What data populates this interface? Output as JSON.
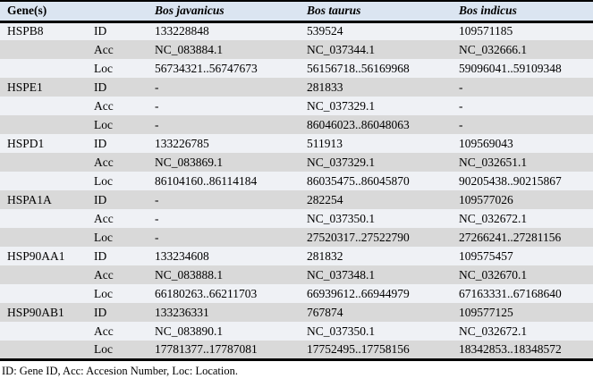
{
  "table": {
    "header": {
      "gene_col": "Gene(s)",
      "sub_col": "",
      "species": [
        "Bos javanicus",
        "Bos taurus",
        "Bos indicus"
      ]
    },
    "genes": [
      {
        "name": "HSPB8",
        "rows": [
          {
            "label": "ID",
            "values": [
              "133228848",
              "539524",
              "109571185"
            ]
          },
          {
            "label": "Acc",
            "values": [
              "NC_083884.1",
              "NC_037344.1",
              "NC_032666.1"
            ]
          },
          {
            "label": "Loc",
            "values": [
              "56734321..56747673",
              "56156718..56169968",
              "59096041..59109348"
            ]
          }
        ]
      },
      {
        "name": "HSPE1",
        "rows": [
          {
            "label": "ID",
            "values": [
              "-",
              "281833",
              "-"
            ]
          },
          {
            "label": "Acc",
            "values": [
              "-",
              "NC_037329.1",
              "-"
            ]
          },
          {
            "label": "Loc",
            "values": [
              "-",
              "86046023..86048063",
              "-"
            ]
          }
        ]
      },
      {
        "name": "HSPD1",
        "rows": [
          {
            "label": "ID",
            "values": [
              "133226785",
              "511913",
              "109569043"
            ]
          },
          {
            "label": "Acc",
            "values": [
              "NC_083869.1",
              "NC_037329.1",
              "NC_032651.1"
            ]
          },
          {
            "label": "Loc",
            "values": [
              "86104160..86114184",
              "86035475..86045870",
              "90205438..90215867"
            ]
          }
        ]
      },
      {
        "name": "HSPA1A",
        "rows": [
          {
            "label": "ID",
            "values": [
              "-",
              "282254",
              "109577026"
            ]
          },
          {
            "label": "Acc",
            "values": [
              "-",
              "NC_037350.1",
              "NC_032672.1"
            ]
          },
          {
            "label": "Loc",
            "values": [
              "-",
              "27520317..27522790",
              "27266241..27281156"
            ]
          }
        ]
      },
      {
        "name": "HSP90AA1",
        "rows": [
          {
            "label": "ID",
            "values": [
              "133234608",
              "281832",
              "109575457"
            ]
          },
          {
            "label": "Acc",
            "values": [
              "NC_083888.1",
              "NC_037348.1",
              "NC_032670.1"
            ]
          },
          {
            "label": "Loc",
            "values": [
              "66180263..66211703",
              "66939612..66944979",
              "67163331..67168640"
            ]
          }
        ]
      },
      {
        "name": "HSP90AB1",
        "rows": [
          {
            "label": "ID",
            "values": [
              "133236331",
              "767874",
              "109577125"
            ]
          },
          {
            "label": "Acc",
            "values": [
              "NC_083890.1",
              "NC_037350.1",
              "NC_032672.1"
            ]
          },
          {
            "label": "Loc",
            "values": [
              "17781377..17787081",
              "17752495..17758156",
              "18342853..18348572"
            ]
          }
        ]
      }
    ],
    "footnote": "ID: Gene ID, Acc: Accesion Number, Loc: Location.",
    "colors": {
      "header_bg": "#dbe5f1",
      "row_light": "#eff1f5",
      "row_gray": "#d9d9d9",
      "border": "#000000"
    }
  }
}
